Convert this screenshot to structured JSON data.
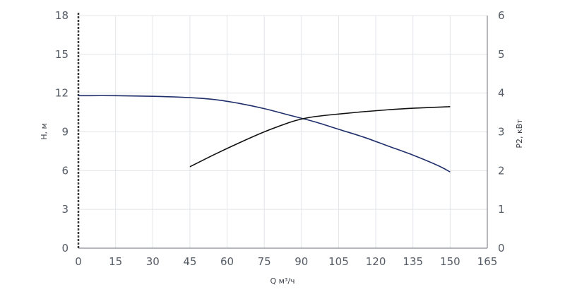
{
  "chart_data": {
    "type": "line",
    "xlabel": "Q м³/ч",
    "ylabel_left": "H, м",
    "ylabel_right": "P2, кВт",
    "x_ticks": [
      0,
      15,
      30,
      45,
      60,
      75,
      90,
      105,
      120,
      135,
      150,
      165
    ],
    "y_left_ticks": [
      0,
      3,
      6,
      9,
      12,
      15,
      18
    ],
    "y_right_ticks": [
      0,
      1,
      2,
      3,
      4,
      5,
      6
    ],
    "xlim": [
      0,
      165
    ],
    "ylim_left": [
      0,
      18
    ],
    "ylim_right": [
      0,
      6
    ],
    "grid": true,
    "series": [
      {
        "axis": "left",
        "color": "#1f2f6b",
        "x": [
          0,
          15,
          30,
          45,
          55,
          65,
          75,
          85,
          95,
          105,
          115,
          125,
          135,
          145,
          150
        ],
        "y": [
          11.8,
          11.8,
          11.75,
          11.65,
          11.5,
          11.2,
          10.8,
          10.3,
          9.8,
          9.2,
          8.6,
          7.9,
          7.2,
          6.4,
          5.9
        ]
      },
      {
        "axis": "right",
        "color": "#111111",
        "x": [
          45,
          55,
          65,
          75,
          85,
          90,
          95,
          105,
          115,
          125,
          135,
          150
        ],
        "y": [
          2.1,
          2.42,
          2.72,
          3.0,
          3.24,
          3.33,
          3.39,
          3.46,
          3.52,
          3.57,
          3.61,
          3.65
        ]
      }
    ]
  }
}
